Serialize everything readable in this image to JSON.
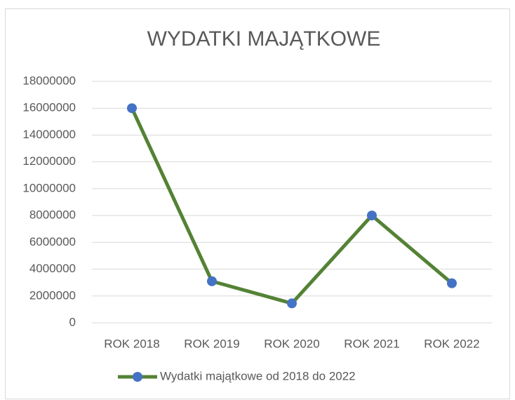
{
  "chart_data": {
    "type": "line",
    "title": "WYDATKI MAJĄTKOWE",
    "categories": [
      "ROK 2018",
      "ROK 2019",
      "ROK 2020",
      "ROK 2021",
      "ROK 2022"
    ],
    "series": [
      {
        "name": "Wydatki majątkowe od 2018 do 2022",
        "color": "#548235",
        "marker_color": "#4472c4",
        "values": [
          16000000,
          3100000,
          1450000,
          8000000,
          2950000
        ]
      }
    ],
    "ylim": [
      0,
      18000000
    ],
    "yticks": [
      0,
      2000000,
      4000000,
      6000000,
      8000000,
      10000000,
      12000000,
      14000000,
      16000000,
      18000000
    ],
    "grid": true,
    "legend": "bottom"
  }
}
